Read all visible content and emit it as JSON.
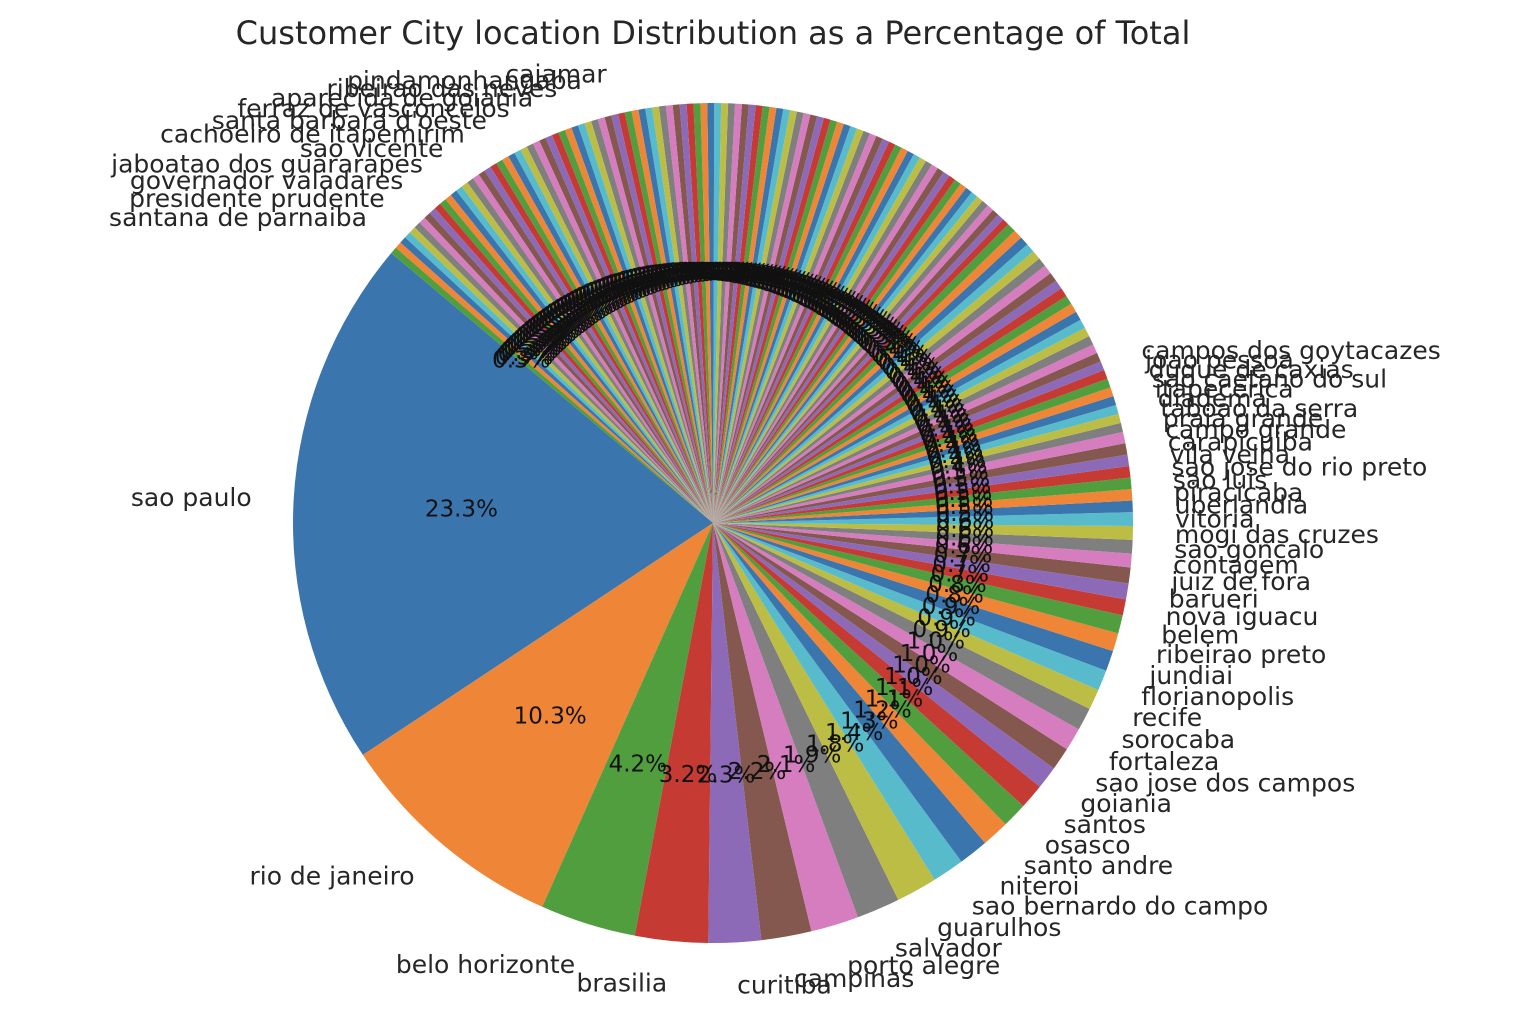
{
  "chart_data": {
    "type": "pie",
    "title": "Customer City location Distribution as a Percentage of Total",
    "start_angle_deg": 140,
    "direction": "counterclockwise",
    "colors": [
      "#3a75ae",
      "#ef8536",
      "#519e3e",
      "#c53a32",
      "#8d6ab8",
      "#84584e",
      "#d57dbe",
      "#7f7f7f",
      "#bcbd45",
      "#58bbcc"
    ],
    "slices": [
      {
        "label": "sao paulo",
        "value": 23.3,
        "pct_label": "23.3%"
      },
      {
        "label": "rio de janeiro",
        "value": 10.3,
        "pct_label": "10.3%"
      },
      {
        "label": "belo horizonte",
        "value": 4.2,
        "pct_label": "4.2%"
      },
      {
        "label": "brasilia",
        "value": 3.2,
        "pct_label": "3.2%"
      },
      {
        "label": "curitiba",
        "value": 2.3,
        "pct_label": "2.3%"
      },
      {
        "label": "campinas",
        "value": 2.2,
        "pct_label": "2.2%"
      },
      {
        "label": "porto alegre",
        "value": 2.1,
        "pct_label": "2.1%"
      },
      {
        "label": "salvador",
        "value": 1.9,
        "pct_label": "1.9%"
      },
      {
        "label": "guarulhos",
        "value": 1.8,
        "pct_label": "1.8%"
      },
      {
        "label": "sao bernardo do campo",
        "value": 1.4,
        "pct_label": "1.4%"
      },
      {
        "label": "niteroi",
        "value": 1.3,
        "pct_label": "1.3%"
      },
      {
        "label": "santo andre",
        "value": 1.2,
        "pct_label": "1.2%"
      },
      {
        "label": "osasco",
        "value": 1.1,
        "pct_label": "1.1%"
      },
      {
        "label": "santos",
        "value": 1.1,
        "pct_label": "1.1%"
      },
      {
        "label": "goiania",
        "value": 1.0,
        "pct_label": "1.0%"
      },
      {
        "label": "sao jose dos campos",
        "value": 1.0,
        "pct_label": "1.0%"
      },
      {
        "label": "fortaleza",
        "value": 1.0,
        "pct_label": "1.0%"
      },
      {
        "label": "sorocaba",
        "value": 1.0,
        "pct_label": "1.0%"
      },
      {
        "label": "recife",
        "value": 0.9,
        "pct_label": "0.9%"
      },
      {
        "label": "florianopolis",
        "value": 0.9,
        "pct_label": "0.9%"
      },
      {
        "label": "jundiai",
        "value": 0.9,
        "pct_label": "0.9%"
      },
      {
        "label": "ribeirao preto",
        "value": 0.8,
        "pct_label": "0.8%"
      },
      {
        "label": "belem",
        "value": 0.8,
        "pct_label": "0.8%"
      },
      {
        "label": "nova iguacu",
        "value": 0.7,
        "pct_label": "0.7%"
      },
      {
        "label": "barueri",
        "value": 0.7,
        "pct_label": "0.7%"
      },
      {
        "label": "juiz de fora",
        "value": 0.7,
        "pct_label": "0.7%"
      },
      {
        "label": "contagem",
        "value": 0.6,
        "pct_label": "0.6%"
      },
      {
        "label": "sao goncalo",
        "value": 0.6,
        "pct_label": "0.6%"
      },
      {
        "label": "mogi das cruzes",
        "value": 0.6,
        "pct_label": "0.6%"
      },
      {
        "label": "vitoria",
        "value": 0.6,
        "pct_label": "0.6%"
      },
      {
        "label": "uberlandia",
        "value": 0.5,
        "pct_label": "0.5%"
      },
      {
        "label": "piracicaba",
        "value": 0.5,
        "pct_label": "0.5%"
      },
      {
        "label": "sao luis",
        "value": 0.5,
        "pct_label": "0.5%"
      },
      {
        "label": "sao jose do rio preto",
        "value": 0.5,
        "pct_label": "0.5%"
      },
      {
        "label": "vila velha",
        "value": 0.5,
        "pct_label": "0.5%"
      },
      {
        "label": "carapicuiba",
        "value": 0.5,
        "pct_label": "0.5%"
      },
      {
        "label": "campo grande",
        "value": 0.5,
        "pct_label": "0.5%"
      },
      {
        "label": "praia grande",
        "value": 0.4,
        "pct_label": "0.4%"
      },
      {
        "label": "taboao da serra",
        "value": 0.4,
        "pct_label": "0.4%"
      },
      {
        "label": "diadema",
        "value": 0.4,
        "pct_label": "0.4%"
      },
      {
        "label": "itapecerica",
        "value": 0.4,
        "pct_label": "0.4%"
      },
      {
        "label": "sao caetano do sul",
        "value": 0.4,
        "pct_label": "0.4%"
      },
      {
        "label": "duque de caxias",
        "value": 0.4,
        "pct_label": "0.4%"
      },
      {
        "label": "joao pessoa",
        "value": 0.4,
        "pct_label": "0.4%"
      },
      {
        "label": "campos dos goytacazes",
        "value": 0.4,
        "pct_label": "0.4%"
      },
      {
        "label": "",
        "value": 0.4,
        "pct_label": "0.4%"
      },
      {
        "label": "",
        "value": 0.4,
        "pct_label": "0.4%"
      },
      {
        "label": "",
        "value": 0.4,
        "pct_label": "0.4%"
      },
      {
        "label": "",
        "value": 0.4,
        "pct_label": "0.4%"
      },
      {
        "label": "",
        "value": 0.4,
        "pct_label": "0.4%"
      },
      {
        "label": "",
        "value": 0.4,
        "pct_label": "0.4%"
      },
      {
        "label": "",
        "value": 0.4,
        "pct_label": "0.4%"
      },
      {
        "label": "",
        "value": 0.4,
        "pct_label": "0.4%"
      },
      {
        "label": "",
        "value": 0.4,
        "pct_label": "0.4%"
      },
      {
        "label": "",
        "value": 0.4,
        "pct_label": "0.4%"
      },
      {
        "label": "",
        "value": 0.4,
        "pct_label": "0.4%"
      },
      {
        "label": "",
        "value": 0.4,
        "pct_label": "0.4%"
      },
      {
        "label": "",
        "value": 0.4,
        "pct_label": "0.4%"
      },
      {
        "label": "",
        "value": 0.4,
        "pct_label": "0.4%"
      },
      {
        "label": "",
        "value": 0.4,
        "pct_label": "0.4%"
      },
      {
        "label": "",
        "value": 0.4,
        "pct_label": "0.4%"
      },
      {
        "label": "",
        "value": 0.4,
        "pct_label": "0.4%"
      },
      {
        "label": "",
        "value": 0.4,
        "pct_label": "0.4%"
      },
      {
        "label": "",
        "value": 0.3,
        "pct_label": "0.3%"
      },
      {
        "label": "",
        "value": 0.3,
        "pct_label": "0.3%"
      },
      {
        "label": "",
        "value": 0.3,
        "pct_label": "0.3%"
      },
      {
        "label": "",
        "value": 0.3,
        "pct_label": "0.3%"
      },
      {
        "label": "",
        "value": 0.3,
        "pct_label": "0.3%"
      },
      {
        "label": "",
        "value": 0.3,
        "pct_label": "0.3%"
      },
      {
        "label": "",
        "value": 0.3,
        "pct_label": "0.3%"
      },
      {
        "label": "",
        "value": 0.3,
        "pct_label": "0.3%"
      },
      {
        "label": "",
        "value": 0.3,
        "pct_label": "0.3%"
      },
      {
        "label": "",
        "value": 0.3,
        "pct_label": "0.3%"
      },
      {
        "label": "",
        "value": 0.3,
        "pct_label": "0.3%"
      },
      {
        "label": "",
        "value": 0.3,
        "pct_label": "0.3%"
      },
      {
        "label": "",
        "value": 0.3,
        "pct_label": "0.3%"
      },
      {
        "label": "",
        "value": 0.3,
        "pct_label": "0.3%"
      },
      {
        "label": "",
        "value": 0.3,
        "pct_label": "0.3%"
      },
      {
        "label": "",
        "value": 0.3,
        "pct_label": "0.3%"
      },
      {
        "label": "",
        "value": 0.3,
        "pct_label": "0.3%"
      },
      {
        "label": "",
        "value": 0.3,
        "pct_label": "0.3%"
      },
      {
        "label": "",
        "value": 0.3,
        "pct_label": "0.3%"
      },
      {
        "label": "",
        "value": 0.3,
        "pct_label": "0.3%"
      },
      {
        "label": "",
        "value": 0.3,
        "pct_label": "0.3%"
      },
      {
        "label": "",
        "value": 0.3,
        "pct_label": "0.3%"
      },
      {
        "label": "",
        "value": 0.3,
        "pct_label": "0.3%"
      },
      {
        "label": "",
        "value": 0.3,
        "pct_label": "0.3%"
      },
      {
        "label": "",
        "value": 0.3,
        "pct_label": "0.3%"
      },
      {
        "label": "",
        "value": 0.3,
        "pct_label": "0.3%"
      },
      {
        "label": "",
        "value": 0.3,
        "pct_label": "0.3%"
      },
      {
        "label": "",
        "value": 0.3,
        "pct_label": "0.3%"
      },
      {
        "label": "",
        "value": 0.3,
        "pct_label": "0.3%"
      },
      {
        "label": "",
        "value": 0.3,
        "pct_label": "0.3%"
      },
      {
        "label": "",
        "value": 0.3,
        "pct_label": "0.3%"
      },
      {
        "label": "",
        "value": 0.3,
        "pct_label": "0.3%"
      },
      {
        "label": "",
        "value": 0.3,
        "pct_label": "0.3%"
      },
      {
        "label": "",
        "value": 0.3,
        "pct_label": "0.3%"
      },
      {
        "label": "",
        "value": 0.3,
        "pct_label": "0.3%"
      },
      {
        "label": "",
        "value": 0.3,
        "pct_label": "0.3%"
      },
      {
        "label": "",
        "value": 0.3,
        "pct_label": "0.3%"
      },
      {
        "label": "",
        "value": 0.3,
        "pct_label": "0.3%"
      },
      {
        "label": "",
        "value": 0.3,
        "pct_label": "0.3%"
      },
      {
        "label": "",
        "value": 0.3,
        "pct_label": "0.3%"
      },
      {
        "label": "",
        "value": 0.3,
        "pct_label": "0.3%"
      },
      {
        "label": "",
        "value": 0.3,
        "pct_label": "0.3%"
      },
      {
        "label": "",
        "value": 0.3,
        "pct_label": "0.3%"
      },
      {
        "label": "",
        "value": 0.3,
        "pct_label": "0.3%"
      },
      {
        "label": "",
        "value": 0.3,
        "pct_label": "0.3%"
      },
      {
        "label": "",
        "value": 0.3,
        "pct_label": "0.3%"
      },
      {
        "label": "",
        "value": 0.3,
        "pct_label": "0.3%"
      },
      {
        "label": "",
        "value": 0.3,
        "pct_label": "0.3%"
      },
      {
        "label": "",
        "value": 0.3,
        "pct_label": "0.3%"
      },
      {
        "label": "",
        "value": 0.3,
        "pct_label": "0.3%"
      },
      {
        "label": "",
        "value": 0.3,
        "pct_label": "0.3%"
      },
      {
        "label": "",
        "value": 0.3,
        "pct_label": "0.3%"
      },
      {
        "label": "",
        "value": 0.3,
        "pct_label": "0.3%"
      },
      {
        "label": "",
        "value": 0.3,
        "pct_label": "0.3%"
      },
      {
        "label": "",
        "value": 0.3,
        "pct_label": "0.3%"
      },
      {
        "label": "",
        "value": 0.3,
        "pct_label": "0.3%"
      },
      {
        "label": "",
        "value": 0.3,
        "pct_label": "0.3%"
      },
      {
        "label": "",
        "value": 0.3,
        "pct_label": "0.3%"
      },
      {
        "label": "",
        "value": 0.3,
        "pct_label": "0.3%"
      },
      {
        "label": "",
        "value": 0.3,
        "pct_label": "0.3%"
      },
      {
        "label": "",
        "value": 0.3,
        "pct_label": "0.3%"
      },
      {
        "label": "",
        "value": 0.3,
        "pct_label": "0.3%"
      },
      {
        "label": "",
        "value": 0.3,
        "pct_label": "0.3%"
      },
      {
        "label": "",
        "value": 0.3,
        "pct_label": "0.3%"
      },
      {
        "label": "",
        "value": 0.3,
        "pct_label": "0.3%"
      },
      {
        "label": "",
        "value": 0.3,
        "pct_label": "0.3%"
      },
      {
        "label": "",
        "value": 0.3,
        "pct_label": "0.3%"
      },
      {
        "label": "",
        "value": 0.3,
        "pct_label": "0.3%"
      },
      {
        "label": "",
        "value": 0.3,
        "pct_label": "0.3%"
      },
      {
        "label": "",
        "value": 0.3,
        "pct_label": "0.3%"
      },
      {
        "label": "",
        "value": 0.3,
        "pct_label": "0.3%"
      },
      {
        "label": "",
        "value": 0.3,
        "pct_label": "0.3%"
      },
      {
        "label": "",
        "value": 0.3,
        "pct_label": "0.3%"
      },
      {
        "label": "",
        "value": 0.3,
        "pct_label": "0.3%"
      },
      {
        "label": "",
        "value": 0.3,
        "pct_label": "0.3%"
      },
      {
        "label": "",
        "value": 0.3,
        "pct_label": "0.3%"
      },
      {
        "label": "",
        "value": 0.3,
        "pct_label": "0.3%"
      },
      {
        "label": "",
        "value": 0.3,
        "pct_label": "0.3%"
      },
      {
        "label": "",
        "value": 0.3,
        "pct_label": "0.3%"
      },
      {
        "label": "",
        "value": 0.3,
        "pct_label": "0.3%"
      },
      {
        "label": "",
        "value": 0.3,
        "pct_label": "0.3%"
      },
      {
        "label": "",
        "value": 0.3,
        "pct_label": "0.3%"
      },
      {
        "label": "",
        "value": 0.3,
        "pct_label": "0.3%"
      },
      {
        "label": "",
        "value": 0.3,
        "pct_label": "0.3%"
      },
      {
        "label": "",
        "value": 0.3,
        "pct_label": "0.3%"
      },
      {
        "label": "",
        "value": 0.3,
        "pct_label": "0.3%"
      },
      {
        "label": "",
        "value": 0.3,
        "pct_label": "0.3%"
      },
      {
        "label": "",
        "value": 0.3,
        "pct_label": "0.3%"
      },
      {
        "label": "",
        "value": 0.3,
        "pct_label": "0.3%"
      },
      {
        "label": "",
        "value": 0.3,
        "pct_label": "0.3%"
      },
      {
        "label": "",
        "value": 0.3,
        "pct_label": "0.3%"
      },
      {
        "label": "",
        "value": 0.3,
        "pct_label": "0.3%"
      },
      {
        "label": "",
        "value": 0.3,
        "pct_label": "0.3%"
      },
      {
        "label": "",
        "value": 0.3,
        "pct_label": "0.3%"
      },
      {
        "label": "",
        "value": 0.3,
        "pct_label": "0.3%"
      },
      {
        "label": "",
        "value": 0.3,
        "pct_label": "0.3%"
      },
      {
        "label": "",
        "value": 0.3,
        "pct_label": "0.3%"
      },
      {
        "label": "",
        "value": 0.3,
        "pct_label": "0.3%"
      },
      {
        "label": "",
        "value": 0.3,
        "pct_label": "0.3%"
      },
      {
        "label": "",
        "value": 0.3,
        "pct_label": "0.3%"
      }
    ],
    "left_cluster_labels": [
      "santana de parnaiba",
      "presidente prudente",
      "governador valadares",
      "jaboatao dos guararapes",
      "sao vicente",
      "cachoeiro de itapemirim",
      "santa barbara d'oeste",
      "ferraz de vasconcelos",
      "aparecida de goiania",
      "ribeirao das neves",
      "pindamonhangaba",
      "cajamar"
    ]
  }
}
